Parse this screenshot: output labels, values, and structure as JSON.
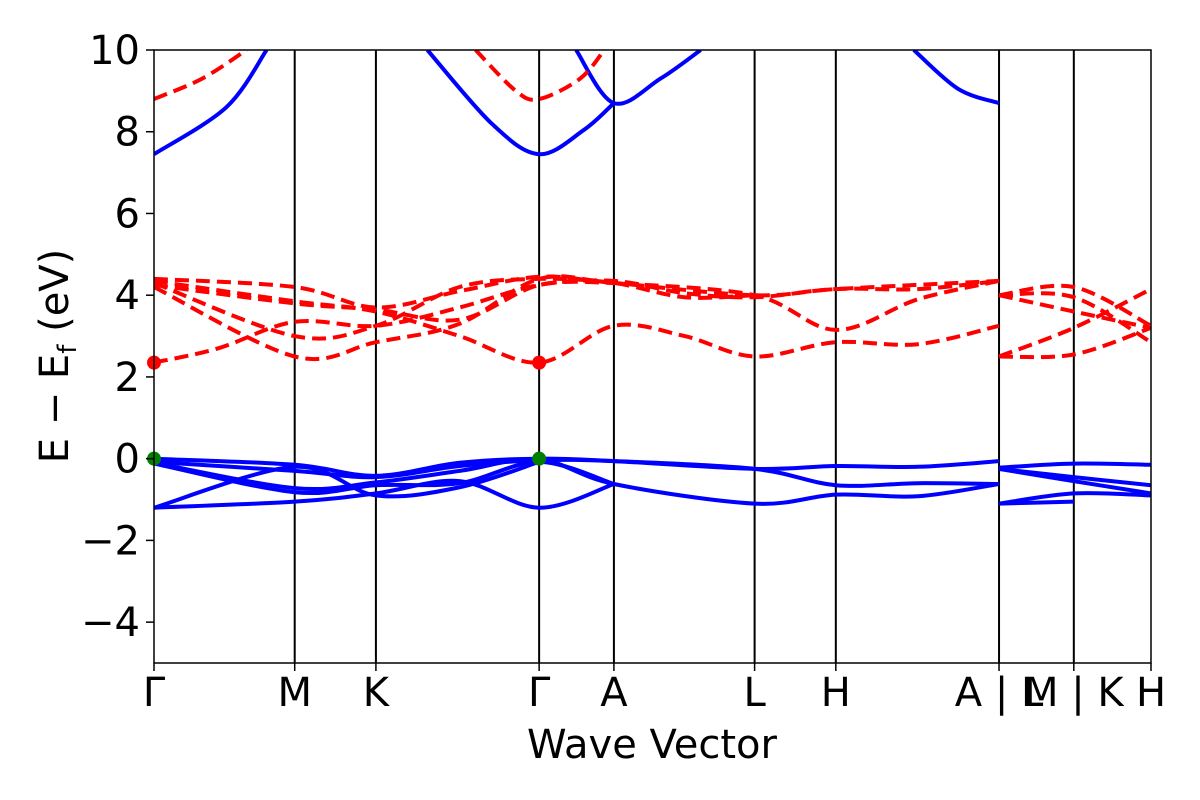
{
  "chart_data": {
    "type": "line",
    "title": "",
    "xlabel": "Wave Vector",
    "ylabel": "E − E",
    "ylabel_sub": "f",
    "ylabel_unit": " (eV)",
    "ylim": [
      -5,
      10
    ],
    "yticks": [
      -4,
      -2,
      0,
      2,
      4,
      6,
      8,
      10
    ],
    "ytick_labels": [
      "−4",
      "−2",
      "0",
      "2",
      "4",
      "6",
      "8",
      "10"
    ],
    "xlim": [
      0,
      12.4
    ],
    "kpath": [
      {
        "label": "Γ",
        "x": 0
      },
      {
        "label": "M",
        "x": 1.75
      },
      {
        "label": "K",
        "x": 2.76
      },
      {
        "label": "Γ",
        "x": 4.79
      },
      {
        "label": "A",
        "x": 5.72
      },
      {
        "label": "L",
        "x": 7.47
      },
      {
        "label": "H",
        "x": 8.48
      },
      {
        "label": "A | L",
        "x": 10.51
      },
      {
        "label": "M | K",
        "x": 11.44
      },
      {
        "label": "H",
        "x": 12.4
      }
    ],
    "segment_breaks": [
      10.51
    ],
    "colors": {
      "up": "#0000ff",
      "down": "#ff0000",
      "vbm_marker": "#008000",
      "cbm_marker": "#ff0000"
    },
    "series": [
      {
        "spin": "up",
        "points": [
          [
            0,
            7.45
          ],
          [
            0.9,
            8.6
          ],
          [
            1.4,
            10.0
          ]
        ]
      },
      {
        "spin": "up",
        "points": [
          [
            3.4,
            10.0
          ],
          [
            4.2,
            8.2
          ],
          [
            4.79,
            7.45
          ],
          [
            5.35,
            8.05
          ],
          [
            5.72,
            8.7
          ]
        ]
      },
      {
        "spin": "up",
        "points": [
          [
            5.25,
            10.0
          ],
          [
            5.72,
            8.7
          ],
          [
            6.3,
            9.3
          ],
          [
            6.8,
            10.0
          ]
        ]
      },
      {
        "spin": "up",
        "points": [
          [
            9.45,
            10.0
          ],
          [
            10.0,
            9.05
          ],
          [
            10.51,
            8.7
          ]
        ]
      },
      {
        "spin": "up",
        "points": [
          [
            0,
            0.0
          ],
          [
            1.75,
            -0.15
          ],
          [
            2.76,
            -0.42
          ],
          [
            3.8,
            -0.1
          ],
          [
            4.79,
            0.0
          ],
          [
            5.72,
            -0.06
          ],
          [
            7.47,
            -0.25
          ],
          [
            8.48,
            -0.18
          ],
          [
            9.5,
            -0.2
          ],
          [
            10.51,
            -0.06
          ]
        ]
      },
      {
        "spin": "up",
        "points": [
          [
            0,
            -0.08
          ],
          [
            1.75,
            -0.3
          ],
          [
            2.76,
            -0.45
          ],
          [
            3.8,
            -0.18
          ],
          [
            4.79,
            -0.04
          ],
          [
            5.72,
            -0.06
          ],
          [
            7.47,
            -0.25
          ],
          [
            8.48,
            -0.65
          ],
          [
            9.5,
            -0.6
          ],
          [
            10.51,
            -0.62
          ]
        ]
      },
      {
        "spin": "up",
        "points": [
          [
            0,
            -0.1
          ],
          [
            1.75,
            -0.72
          ],
          [
            2.76,
            -0.58
          ],
          [
            3.8,
            -0.3
          ],
          [
            4.79,
            -0.02
          ],
          [
            5.72,
            -0.62
          ],
          [
            7.47,
            -1.1
          ],
          [
            8.48,
            -0.88
          ],
          [
            9.5,
            -0.92
          ],
          [
            10.51,
            -0.62
          ]
        ]
      },
      {
        "spin": "up",
        "points": [
          [
            0,
            -0.12
          ],
          [
            1.75,
            -0.82
          ],
          [
            2.76,
            -0.65
          ],
          [
            3.8,
            -0.6
          ],
          [
            4.79,
            -0.08
          ],
          [
            5.72,
            -0.62
          ]
        ]
      },
      {
        "spin": "up",
        "points": [
          [
            0,
            -1.2
          ],
          [
            1.75,
            -1.05
          ],
          [
            2.76,
            -0.85
          ],
          [
            3.8,
            -0.55
          ],
          [
            4.79,
            -1.2
          ],
          [
            5.72,
            -0.62
          ]
        ]
      },
      {
        "spin": "up",
        "points": [
          [
            0,
            -1.2
          ],
          [
            1.75,
            -0.2
          ],
          [
            2.76,
            -0.9
          ],
          [
            3.8,
            -0.7
          ],
          [
            4.79,
            -0.08
          ]
        ]
      },
      {
        "spin": "up",
        "points": [
          [
            10.51,
            -0.22
          ],
          [
            11.44,
            -0.12
          ],
          [
            12.4,
            -0.15
          ]
        ]
      },
      {
        "spin": "up",
        "points": [
          [
            10.51,
            -0.25
          ],
          [
            11.44,
            -0.45
          ],
          [
            12.4,
            -0.65
          ]
        ]
      },
      {
        "spin": "up",
        "points": [
          [
            10.51,
            -0.25
          ],
          [
            11.44,
            -0.55
          ],
          [
            12.4,
            -0.85
          ]
        ]
      },
      {
        "spin": "up",
        "points": [
          [
            10.51,
            -1.1
          ],
          [
            11.44,
            -0.85
          ],
          [
            12.4,
            -0.9
          ]
        ]
      },
      {
        "spin": "up",
        "points": [
          [
            10.51,
            -1.1
          ],
          [
            11.44,
            -1.05
          ]
        ]
      },
      {
        "spin": "down",
        "points": [
          [
            0,
            8.8
          ],
          [
            0.6,
            9.3
          ],
          [
            1.15,
            10.0
          ]
        ]
      },
      {
        "spin": "down",
        "points": [
          [
            4.0,
            10.0
          ],
          [
            4.5,
            9.0
          ],
          [
            4.79,
            8.8
          ],
          [
            5.3,
            9.3
          ],
          [
            5.6,
            10.0
          ]
        ]
      },
      {
        "spin": "down",
        "points": [
          [
            0,
            2.35
          ],
          [
            0.8,
            2.7
          ],
          [
            1.75,
            3.35
          ],
          [
            2.76,
            3.25
          ],
          [
            3.8,
            3.7
          ],
          [
            4.79,
            4.25
          ],
          [
            5.72,
            4.35
          ],
          [
            6.6,
            4.05
          ],
          [
            7.47,
            3.95
          ],
          [
            8.48,
            4.15
          ],
          [
            9.5,
            4.15
          ],
          [
            10.51,
            4.35
          ]
        ]
      },
      {
        "spin": "down",
        "points": [
          [
            0,
            4.2
          ],
          [
            1.75,
            2.5
          ],
          [
            2.76,
            2.85
          ],
          [
            3.8,
            3.3
          ],
          [
            4.79,
            4.4
          ],
          [
            5.72,
            4.3
          ],
          [
            7.47,
            4.0
          ],
          [
            8.48,
            3.15
          ],
          [
            9.5,
            3.9
          ],
          [
            10.51,
            4.35
          ]
        ]
      },
      {
        "spin": "down",
        "points": [
          [
            0,
            4.35
          ],
          [
            1.75,
            3.85
          ],
          [
            2.76,
            3.6
          ],
          [
            3.8,
            3.0
          ],
          [
            4.79,
            2.35
          ],
          [
            5.72,
            3.25
          ],
          [
            6.6,
            3.0
          ],
          [
            7.47,
            2.5
          ],
          [
            8.48,
            2.85
          ],
          [
            9.5,
            2.8
          ],
          [
            10.51,
            3.25
          ]
        ]
      },
      {
        "spin": "down",
        "points": [
          [
            0,
            4.4
          ],
          [
            1.75,
            4.2
          ],
          [
            2.76,
            3.7
          ],
          [
            3.8,
            4.1
          ],
          [
            4.79,
            4.45
          ],
          [
            5.72,
            4.3
          ],
          [
            7.47,
            4.0
          ],
          [
            8.48,
            4.15
          ],
          [
            10.51,
            4.35
          ]
        ]
      },
      {
        "spin": "down",
        "points": [
          [
            0,
            4.3
          ],
          [
            1.75,
            3.0
          ],
          [
            2.76,
            3.25
          ],
          [
            3.8,
            4.2
          ],
          [
            4.79,
            4.4
          ],
          [
            5.72,
            4.3
          ],
          [
            6.6,
            3.95
          ],
          [
            7.47,
            4.0
          ]
        ]
      },
      {
        "spin": "down",
        "points": [
          [
            0,
            4.25
          ],
          [
            1.75,
            3.8
          ],
          [
            2.76,
            3.65
          ],
          [
            3.8,
            3.4
          ],
          [
            4.79,
            4.25
          ],
          [
            5.72,
            4.3
          ]
        ]
      },
      {
        "spin": "down",
        "points": [
          [
            10.51,
            4.0
          ],
          [
            11.44,
            4.2
          ],
          [
            12.4,
            3.25
          ]
        ]
      },
      {
        "spin": "down",
        "points": [
          [
            10.51,
            4.0
          ],
          [
            11.44,
            3.95
          ],
          [
            12.4,
            2.85
          ]
        ]
      },
      {
        "spin": "down",
        "points": [
          [
            10.51,
            4.0
          ],
          [
            11.44,
            3.6
          ],
          [
            12.4,
            3.2
          ]
        ]
      },
      {
        "spin": "down",
        "points": [
          [
            10.51,
            2.5
          ],
          [
            11.44,
            3.2
          ],
          [
            12.4,
            4.15
          ]
        ]
      },
      {
        "spin": "down",
        "points": [
          [
            10.51,
            2.5
          ],
          [
            11.44,
            2.55
          ],
          [
            12.4,
            3.2
          ]
        ]
      }
    ],
    "markers": [
      {
        "kind": "vbm",
        "x": 0,
        "y": 0.0
      },
      {
        "kind": "vbm",
        "x": 4.79,
        "y": 0.0
      },
      {
        "kind": "cbm",
        "x": 0,
        "y": 2.35
      },
      {
        "kind": "cbm",
        "x": 4.79,
        "y": 2.35
      }
    ]
  }
}
